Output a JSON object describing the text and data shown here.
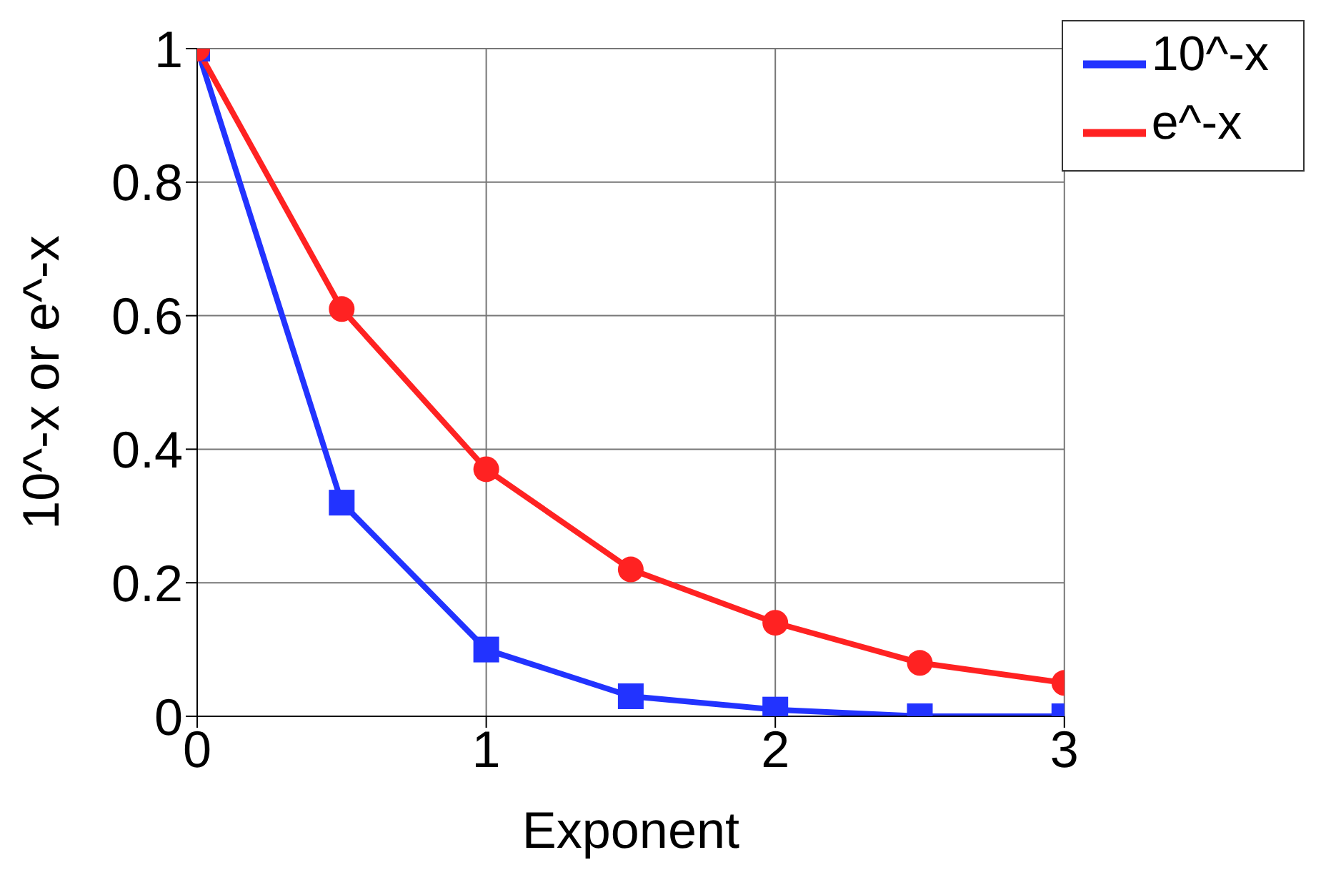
{
  "chart_data": {
    "type": "line",
    "xlabel": "Exponent",
    "ylabel": "10^-x or e^-x",
    "x": [
      0,
      0.5,
      1,
      1.5,
      2,
      2.5,
      3
    ],
    "series": [
      {
        "name": "10^-x",
        "color": "#2233ff",
        "marker": "square",
        "values": [
          1,
          0.32,
          0.1,
          0.03,
          0.01,
          0,
          0
        ]
      },
      {
        "name": "e^-x",
        "color": "#ff2222",
        "marker": "circle",
        "values": [
          1,
          0.61,
          0.37,
          0.22,
          0.14,
          0.08,
          0.05
        ]
      }
    ],
    "xlim": [
      0,
      3
    ],
    "xticks": [
      0,
      1,
      2,
      3
    ],
    "ylim": [
      0,
      1
    ],
    "yticks": [
      0,
      0.2,
      0.4,
      0.6,
      0.8,
      1
    ],
    "grid": true,
    "legend": "top right",
    "line_style": "solid"
  }
}
